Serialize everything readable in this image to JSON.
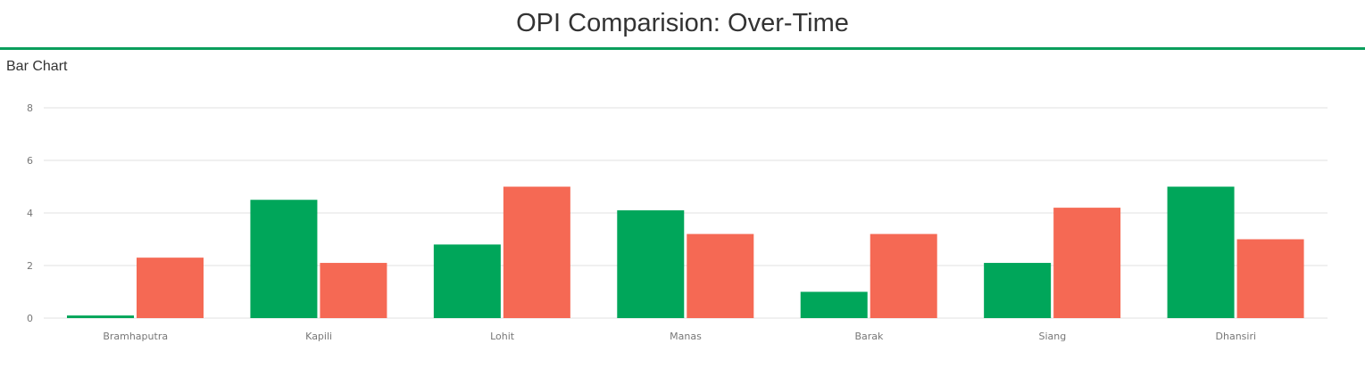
{
  "page": {
    "title": "OPI Comparision: Over-Time",
    "panel_title": "Bar Chart"
  },
  "colors": {
    "accent": "#0a9e5c",
    "series_1": "#00a65a",
    "series_2": "#f56954",
    "grid": "#e0e0e0",
    "tick": "#777777"
  },
  "chart_data": {
    "type": "bar",
    "categories": [
      "Bramhaputra",
      "Kapili",
      "Lohit",
      "Manas",
      "Barak",
      "Siang",
      "Dhansiri"
    ],
    "series": [
      {
        "values": [
          0.1,
          4.5,
          2.8,
          4.1,
          1.0,
          2.1,
          5.0
        ]
      },
      {
        "values": [
          2.3,
          2.1,
          5.0,
          3.2,
          3.2,
          4.2,
          3.0
        ]
      }
    ],
    "yticks": [
      0,
      2,
      4,
      6,
      8
    ],
    "ylim": [
      0,
      8
    ],
    "grid": true,
    "legend": "none"
  }
}
